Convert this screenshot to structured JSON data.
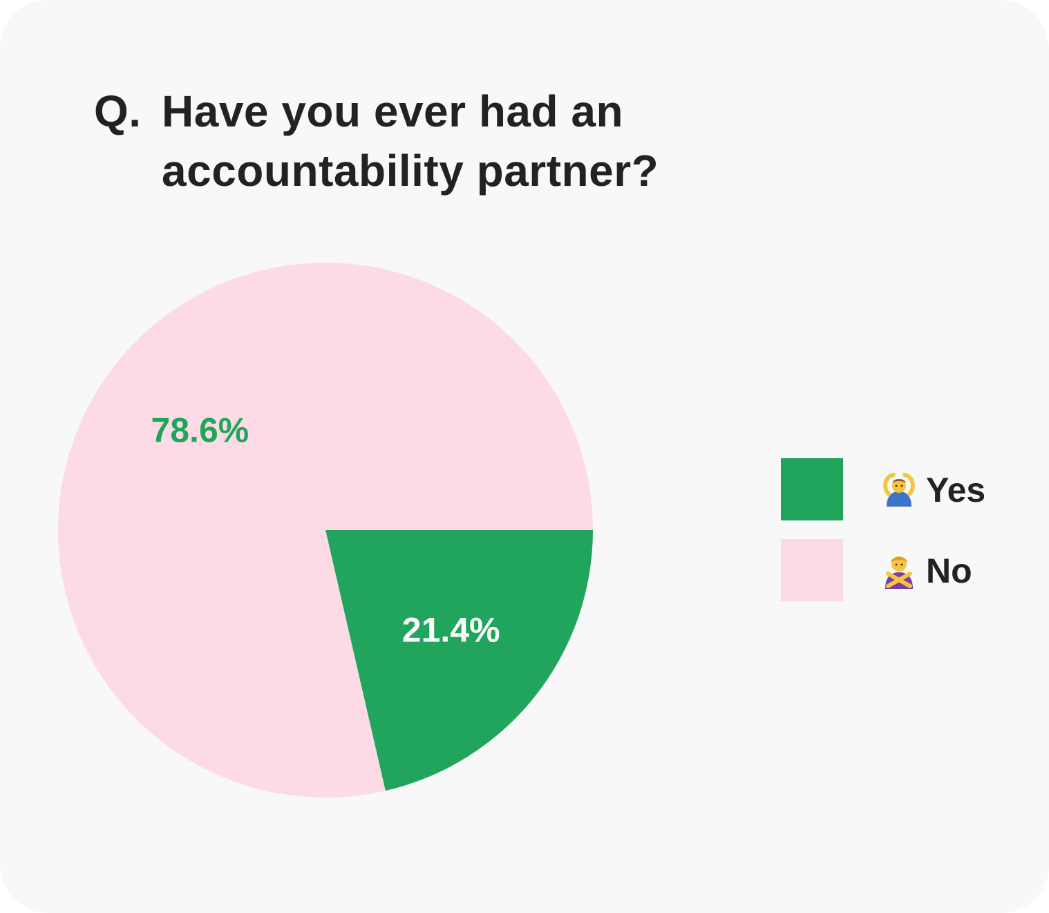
{
  "question": {
    "prefix": "Q.",
    "text": "Have you ever had an accountability partner?"
  },
  "chart_data": {
    "type": "pie",
    "categories": [
      "Yes",
      "No"
    ],
    "values": [
      21.4,
      78.6
    ],
    "labels": [
      "21.4%",
      "78.6%"
    ],
    "colors": [
      "#21a55d",
      "#fddbe6"
    ],
    "label_colors": [
      "#ffffff",
      "#21a55d"
    ],
    "legend": {
      "position": "right",
      "items": [
        {
          "icon": "person-gesturing-ok-icon",
          "label": "Yes",
          "color": "#21a55d"
        },
        {
          "icon": "person-gesturing-no-icon",
          "label": "No",
          "color": "#fddbe6"
        }
      ]
    }
  }
}
